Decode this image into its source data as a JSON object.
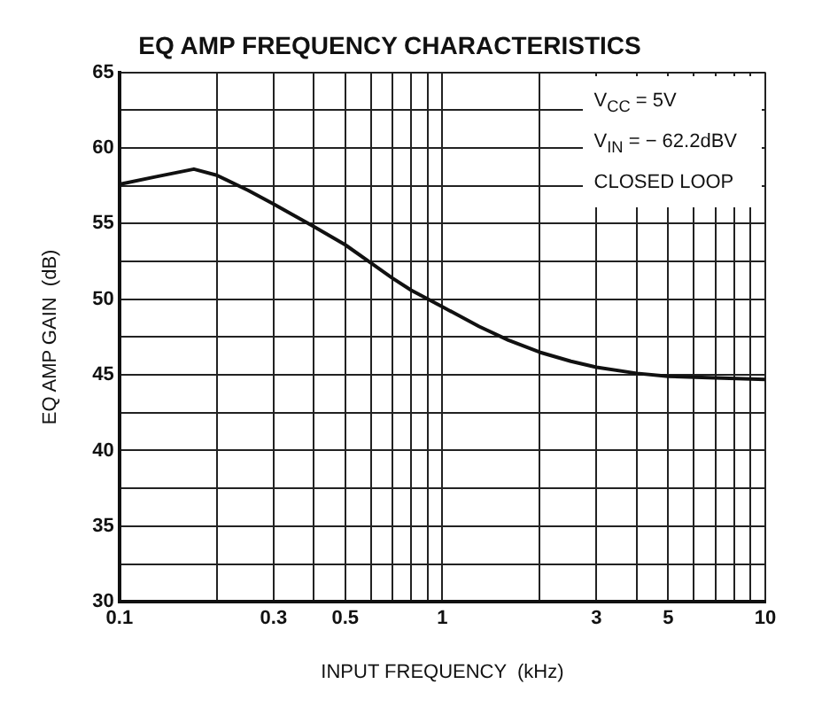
{
  "chart_data": {
    "type": "line",
    "title": "EQ AMP FREQUENCY CHARACTERISTICS",
    "xlabel": "INPUT FREQUENCY  (kHz)",
    "ylabel": "EQ AMP GAIN  (dB)",
    "annotations": [
      "V$_{CC}$ = 5V",
      "V$_{IN}$ = − 62.2dBV",
      "CLOSED LOOP"
    ],
    "x": [
      0.1,
      0.13,
      0.17,
      0.2,
      0.25,
      0.3,
      0.4,
      0.5,
      0.6,
      0.7,
      0.8,
      1,
      1.3,
      1.6,
      2,
      2.5,
      3,
      4,
      5,
      7,
      10
    ],
    "series": [
      {
        "color": "#111111",
        "values": [
          57.6,
          58.1,
          58.6,
          58.2,
          57.2,
          56.3,
          54.8,
          53.6,
          52.4,
          51.4,
          50.6,
          49.5,
          48.2,
          47.3,
          46.5,
          45.9,
          45.5,
          45.1,
          44.9,
          44.8,
          44.7
        ]
      }
    ],
    "log": "x",
    "xlim": [
      0.1,
      10
    ],
    "ylim": [
      30,
      65
    ],
    "xticks": [
      0.1,
      {
        "value": 0.2,
        "label": null
      },
      0.3,
      {
        "value": 0.4,
        "label": null
      },
      0.5,
      {
        "value": 0.6,
        "label": null
      },
      {
        "value": 0.7,
        "label": null
      },
      {
        "value": 0.8,
        "label": null
      },
      {
        "value": 0.9,
        "label": null
      },
      1,
      {
        "value": 2,
        "label": null
      },
      3,
      {
        "value": 4,
        "label": null
      },
      5,
      {
        "value": 6,
        "label": null
      },
      {
        "value": 7,
        "label": null
      },
      {
        "value": 8,
        "label": null
      },
      {
        "value": 9,
        "label": null
      },
      10
    ],
    "yticks": [
      30,
      {
        "value": 32.5,
        "label": null
      },
      35,
      {
        "value": 37.5,
        "label": null
      },
      40,
      {
        "value": 42.5,
        "label": null
      },
      45,
      {
        "value": 47.5,
        "label": null
      },
      50,
      {
        "value": 52.5,
        "label": null
      },
      55,
      {
        "value": 57.5,
        "label": null
      },
      60,
      {
        "value": 62.5,
        "label": null
      },
      65
    ],
    "grid": true,
    "legend": false,
    "marker": "none",
    "line_style": "solid"
  }
}
